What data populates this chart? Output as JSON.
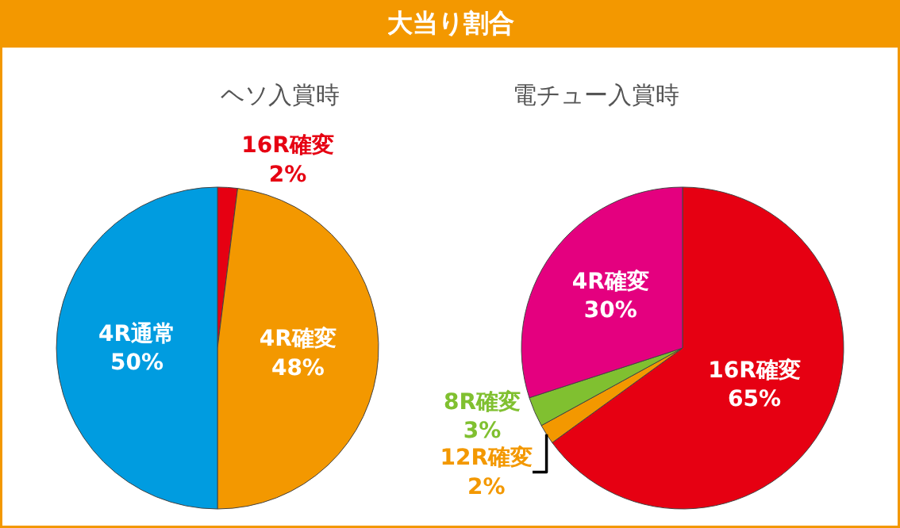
{
  "chart_data": [
    {
      "type": "pie",
      "title": "ヘソ入賞時",
      "annotations": [
        "大当り割合"
      ],
      "categories": [
        "16R確変",
        "4R確変",
        "4R通常"
      ],
      "values": [
        2,
        48,
        50
      ],
      "value_labels": [
        "2%",
        "48%",
        "50%"
      ],
      "colors": [
        "#e60012",
        "#f39800",
        "#009ce0"
      ],
      "legend": false
    },
    {
      "type": "pie",
      "title": "電チュー入賞時",
      "categories": [
        "16R確変",
        "12R確変",
        "8R確変",
        "4R確変"
      ],
      "values": [
        65,
        2,
        3,
        30
      ],
      "value_labels": [
        "65%",
        "2%",
        "3%",
        "30%"
      ],
      "colors": [
        "#e60012",
        "#f39800",
        "#80c030",
        "#e4007f"
      ],
      "legend": false
    }
  ]
}
